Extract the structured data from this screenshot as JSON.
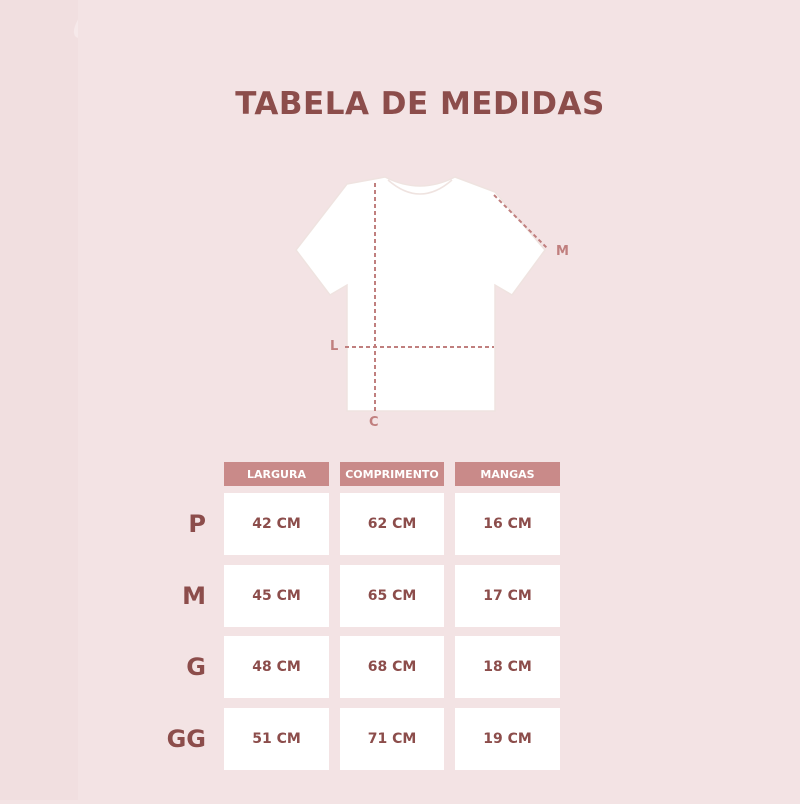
{
  "title": "TABELA DE MEDIDAS",
  "diagram": {
    "labels": {
      "sleeve": "M",
      "width": "L",
      "length": "C"
    }
  },
  "table": {
    "headers": [
      "LARGURA",
      "COMPRIMENTO",
      "MANGAS"
    ],
    "rows": [
      {
        "size": "P",
        "values": [
          "42 CM",
          "62 CM",
          "16 CM"
        ]
      },
      {
        "size": "M",
        "values": [
          "45 CM",
          "65 CM",
          "17 CM"
        ]
      },
      {
        "size": "G",
        "values": [
          "48 CM",
          "68 CM",
          "18 CM"
        ]
      },
      {
        "size": "GG",
        "values": [
          "51 CM",
          "71 CM",
          "19 CM"
        ]
      }
    ]
  },
  "colors": {
    "background": "#f3e3e4",
    "header": "#c98a89",
    "text": "#8c4d4b",
    "dash": "#c07f7e"
  }
}
